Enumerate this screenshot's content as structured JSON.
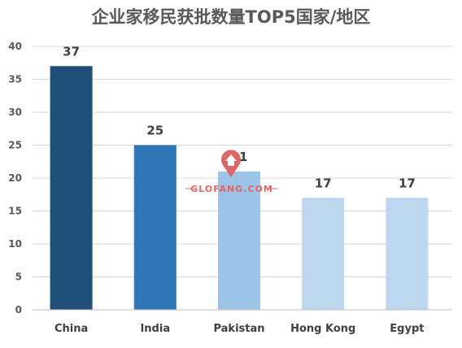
{
  "chart_data": {
    "type": "bar",
    "title": "企业家移民获批数量TOP5国家/地区",
    "categories": [
      "China",
      "India",
      "Pakistan",
      "Hong Kong",
      "Egypt"
    ],
    "values": [
      37,
      25,
      21,
      17,
      17
    ],
    "data_labels": [
      "37",
      "25",
      "21",
      "17",
      "17"
    ],
    "ylim": [
      0,
      40
    ],
    "yticks": [
      0,
      5,
      10,
      15,
      20,
      25,
      30,
      35,
      40
    ],
    "grid": true,
    "bar_colors": [
      "#1f4e79",
      "#2e75b6",
      "#9dc3e6",
      "#bdd7ee",
      "#bdd7ee"
    ]
  },
  "watermark": {
    "text": "GLOFANG.COM",
    "color": "#e06666"
  }
}
